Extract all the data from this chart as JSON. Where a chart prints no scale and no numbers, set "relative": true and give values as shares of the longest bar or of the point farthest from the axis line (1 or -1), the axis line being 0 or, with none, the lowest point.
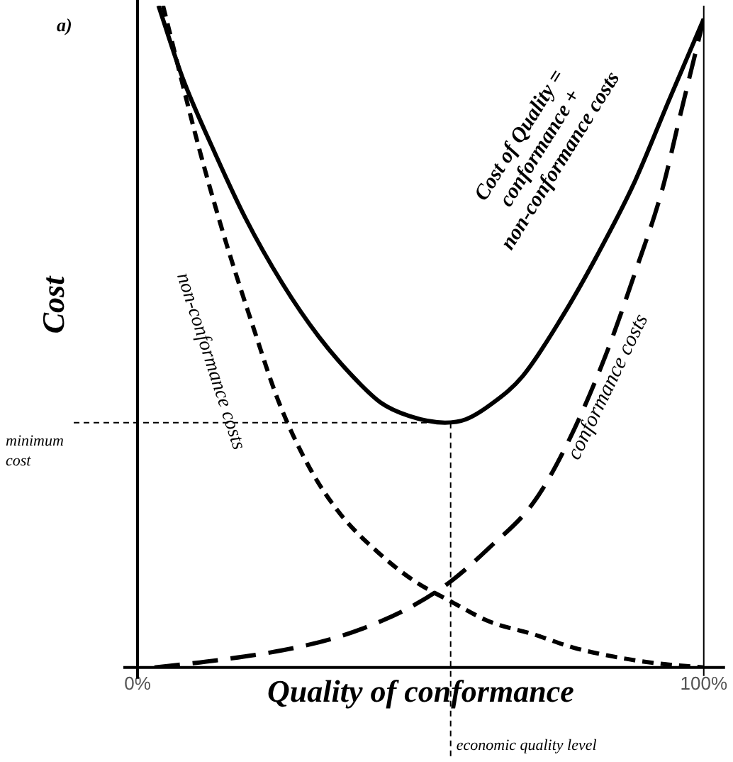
{
  "chart_data": {
    "type": "line",
    "relative": true,
    "xlabel": "Quality of conformance",
    "ylabel": "Cost",
    "xlim": [
      0,
      100
    ],
    "xticks": [
      {
        "value": 0,
        "label": "0%"
      },
      {
        "value": 100,
        "label": "100%"
      }
    ],
    "grid": false,
    "legend": false,
    "marker": "none",
    "series": [
      {
        "name": "non-conformance costs",
        "color": "#000000",
        "line_style": "dashed",
        "x": [
          4.5,
          10.7,
          15,
          20.6,
          25,
          30.5,
          36,
          43,
          49,
          55.3,
          62,
          70,
          77,
          85,
          92,
          100
        ],
        "values": [
          1.0,
          0.79,
          0.66,
          0.51,
          0.4,
          0.3,
          0.23,
          0.17,
          0.13,
          0.1,
          0.07,
          0.05,
          0.03,
          0.015,
          0.006,
          0
        ]
      },
      {
        "name": "conformance costs",
        "color": "#000000",
        "line_style": "dashed",
        "x": [
          3,
          15,
          25.6,
          35,
          43,
          49,
          55.3,
          62,
          70,
          76,
          82.6,
          88,
          92.6,
          96,
          100
        ],
        "values": [
          0,
          0.012,
          0.026,
          0.045,
          0.07,
          0.095,
          0.13,
          0.18,
          0.25,
          0.34,
          0.47,
          0.6,
          0.72,
          0.84,
          0.98
        ]
      },
      {
        "name": "Cost of Quality = conformance + non-conformance costs",
        "color": "#000000",
        "line_style": "solid",
        "x": [
          3.7,
          8,
          13,
          19,
          25.6,
          32,
          38,
          43,
          48,
          54.3,
          58,
          62.8,
          68,
          75,
          81,
          87.6,
          94,
          100
        ],
        "values": [
          1.0,
          0.89,
          0.79,
          0.68,
          0.58,
          0.5,
          0.44,
          0.4,
          0.38,
          0.37,
          0.375,
          0.4,
          0.44,
          0.53,
          0.62,
          0.73,
          0.86,
          0.98
        ]
      }
    ],
    "ref_lines": [
      {
        "axis": "y",
        "value": 0.37,
        "label": "minimum cost",
        "line_style": "dashed"
      },
      {
        "axis": "x",
        "value": 55.3,
        "label": "economic quality level",
        "line_style": "dashed"
      }
    ],
    "annotations": [
      "a)"
    ]
  }
}
